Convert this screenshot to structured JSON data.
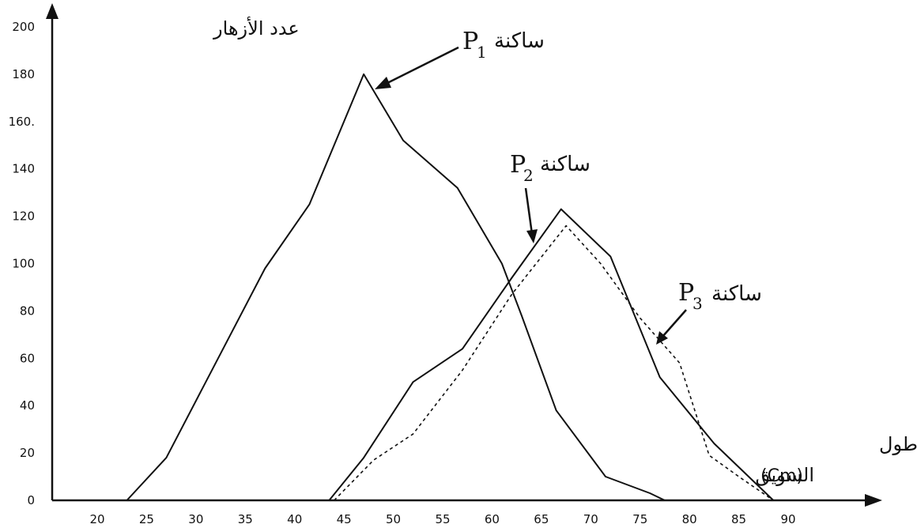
{
  "chart_data": {
    "type": "line",
    "ylabel": "عدد الأزهار",
    "xlabel_line1": "طول",
    "xlabel_line2": "السويق",
    "xlabel_unit": "(Cm)",
    "xlim": [
      20,
      93
    ],
    "ylim": [
      0,
      200
    ],
    "x_ticks": [
      20,
      25,
      30,
      35,
      40,
      45,
      50,
      55,
      60,
      65,
      70,
      75,
      80,
      85,
      90
    ],
    "y_ticks": [
      0,
      20,
      40,
      60,
      80,
      100,
      120,
      140,
      160,
      180,
      200
    ],
    "y_tick_labels": [
      "0",
      "20",
      "40",
      "60",
      "80",
      "100",
      "120",
      "140",
      "160.",
      "180",
      "200"
    ],
    "series": [
      {
        "name": "P1",
        "label_prefix": "ساكنة",
        "label_letter": "P",
        "label_sub": "1",
        "style": "solid",
        "x": [
          23,
          27,
          32,
          37,
          41.5,
          47,
          51,
          56.5,
          61,
          63,
          66.5,
          71.5,
          76,
          77.5
        ],
        "y": [
          0,
          18,
          58,
          98,
          125,
          180,
          152,
          132,
          100,
          78,
          38,
          10,
          3,
          0
        ]
      },
      {
        "name": "P2",
        "label_prefix": "ساكنة",
        "label_letter": "P",
        "label_sub": "2",
        "style": "solid",
        "x": [
          43.5,
          47,
          52,
          57,
          62,
          67,
          72,
          77,
          82.5,
          88.5
        ],
        "y": [
          0,
          18,
          50,
          64,
          94,
          123,
          103,
          52,
          24,
          0
        ]
      },
      {
        "name": "P3",
        "label_prefix": "ساكنة",
        "label_letter": "P",
        "label_sub": "3",
        "style": "dashed",
        "x": [
          44,
          48,
          52,
          57,
          62,
          67.5,
          71,
          75,
          79,
          82,
          85,
          88.5
        ],
        "y": [
          0,
          17,
          28,
          55,
          87,
          116,
          100,
          77,
          58,
          19,
          10,
          0
        ]
      }
    ]
  }
}
